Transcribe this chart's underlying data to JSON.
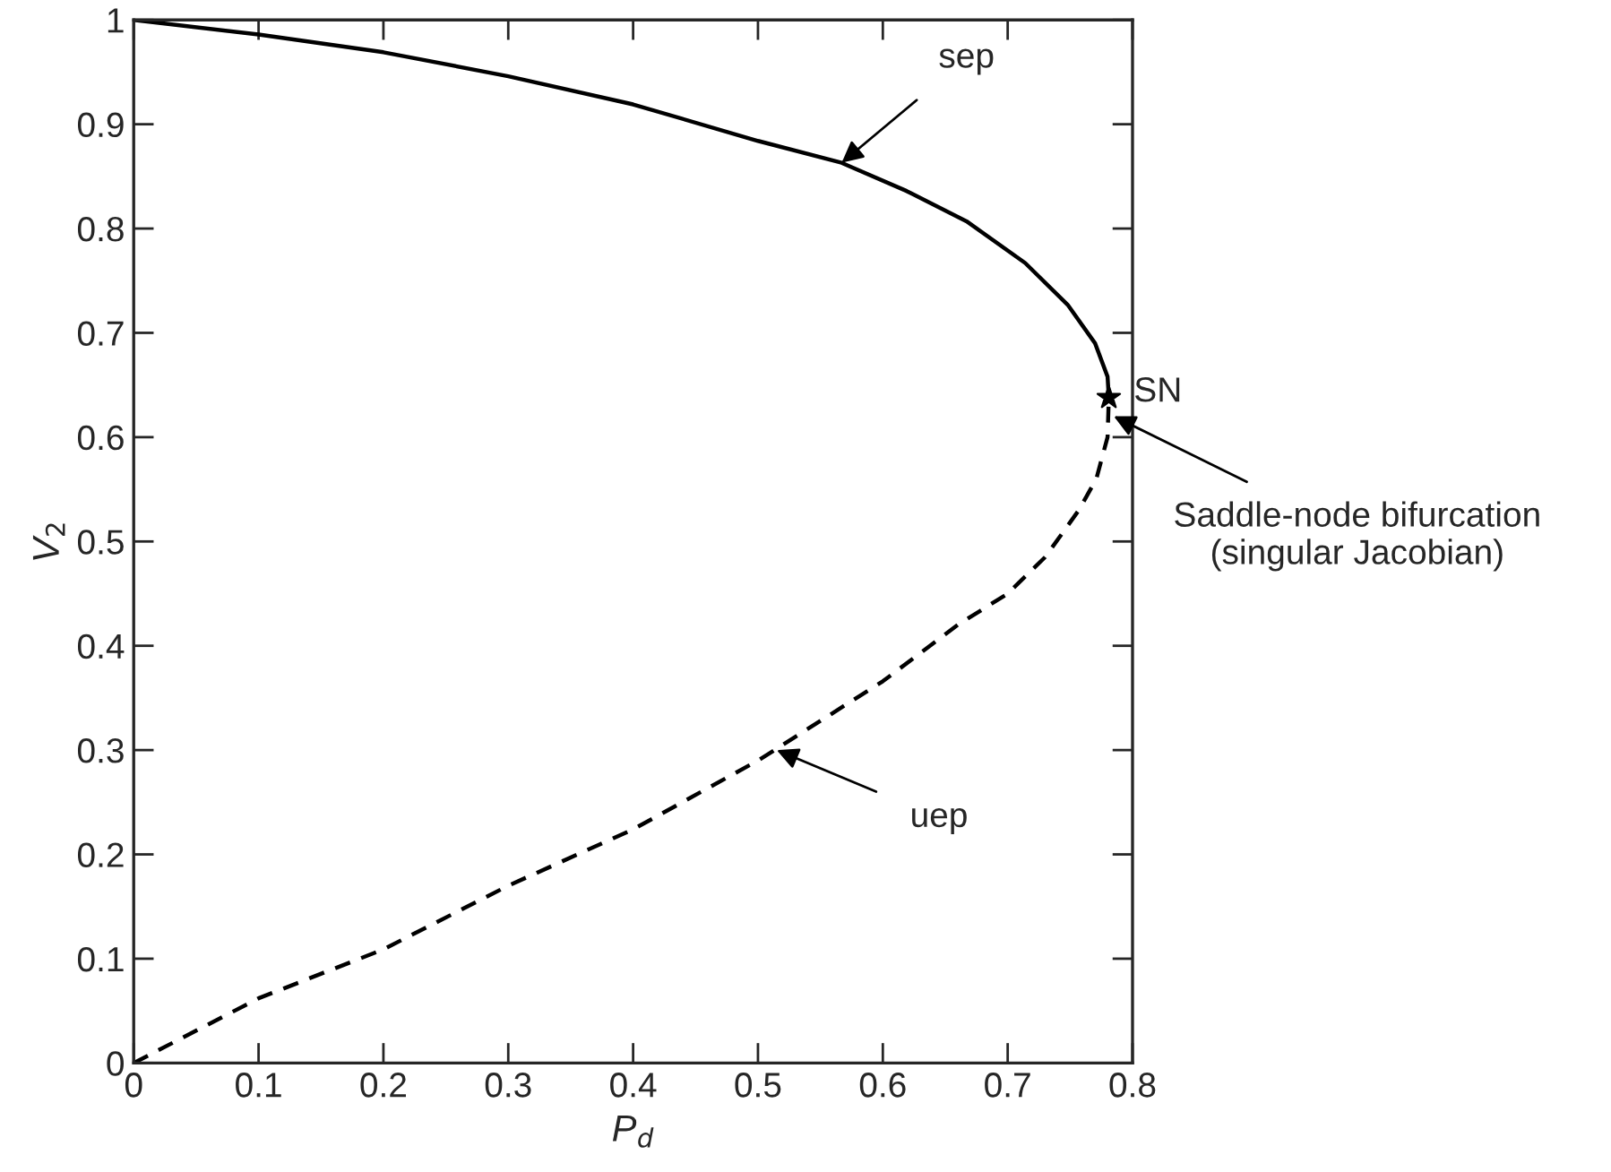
{
  "chart_data": {
    "type": "line",
    "xlabel": "P$_{d}$",
    "ylabel": "V$_{2}$",
    "xlim": [
      0,
      0.8
    ],
    "ylim": [
      0,
      1
    ],
    "xticks": [
      0,
      0.1,
      0.2,
      0.3,
      0.4,
      0.5,
      0.6,
      0.7,
      0.8
    ],
    "yticks": [
      0,
      0.1,
      0.2,
      0.3,
      0.4,
      0.5,
      0.6,
      0.7,
      0.8,
      0.9,
      1
    ],
    "grid": false,
    "legend": false,
    "series": [
      {
        "color": "#000000",
        "line_style": "solid",
        "marker": "none",
        "x": [
          0,
          0.1,
          0.2,
          0.3,
          0.4,
          0.5,
          0.567,
          0.619,
          0.667,
          0.714,
          0.748,
          0.77,
          0.78,
          0.781
        ],
        "values": [
          1,
          0.986,
          0.969,
          0.946,
          0.919,
          0.884,
          0.863,
          0.836,
          0.807,
          0.767,
          0.727,
          0.69,
          0.658,
          0.638
        ]
      },
      {
        "color": "#000000",
        "line_style": "dashed",
        "marker": "none",
        "x": [
          0,
          0.1,
          0.2,
          0.3,
          0.4,
          0.5,
          0.6,
          0.66,
          0.7,
          0.73,
          0.757,
          0.771,
          0.78,
          0.781
        ],
        "values": [
          0,
          0.062,
          0.109,
          0.17,
          0.224,
          0.29,
          0.366,
          0.42,
          0.45,
          0.485,
          0.53,
          0.56,
          0.6,
          0.638
        ]
      },
      {
        "type": "scatter",
        "name": "SN",
        "color": "#000000",
        "marker": "star",
        "x": [
          0.781
        ],
        "values": [
          0.638
        ]
      }
    ],
    "annotations": [
      {
        "text": "sep",
        "x": 0.567,
        "y": 0.863
      },
      {
        "text": "uep",
        "x": 0.515,
        "y": 0.3
      },
      {
        "text": "Saddle-node bifurcation\n(singular Jacobian)",
        "x": 0.785,
        "y": 0.62
      }
    ]
  }
}
